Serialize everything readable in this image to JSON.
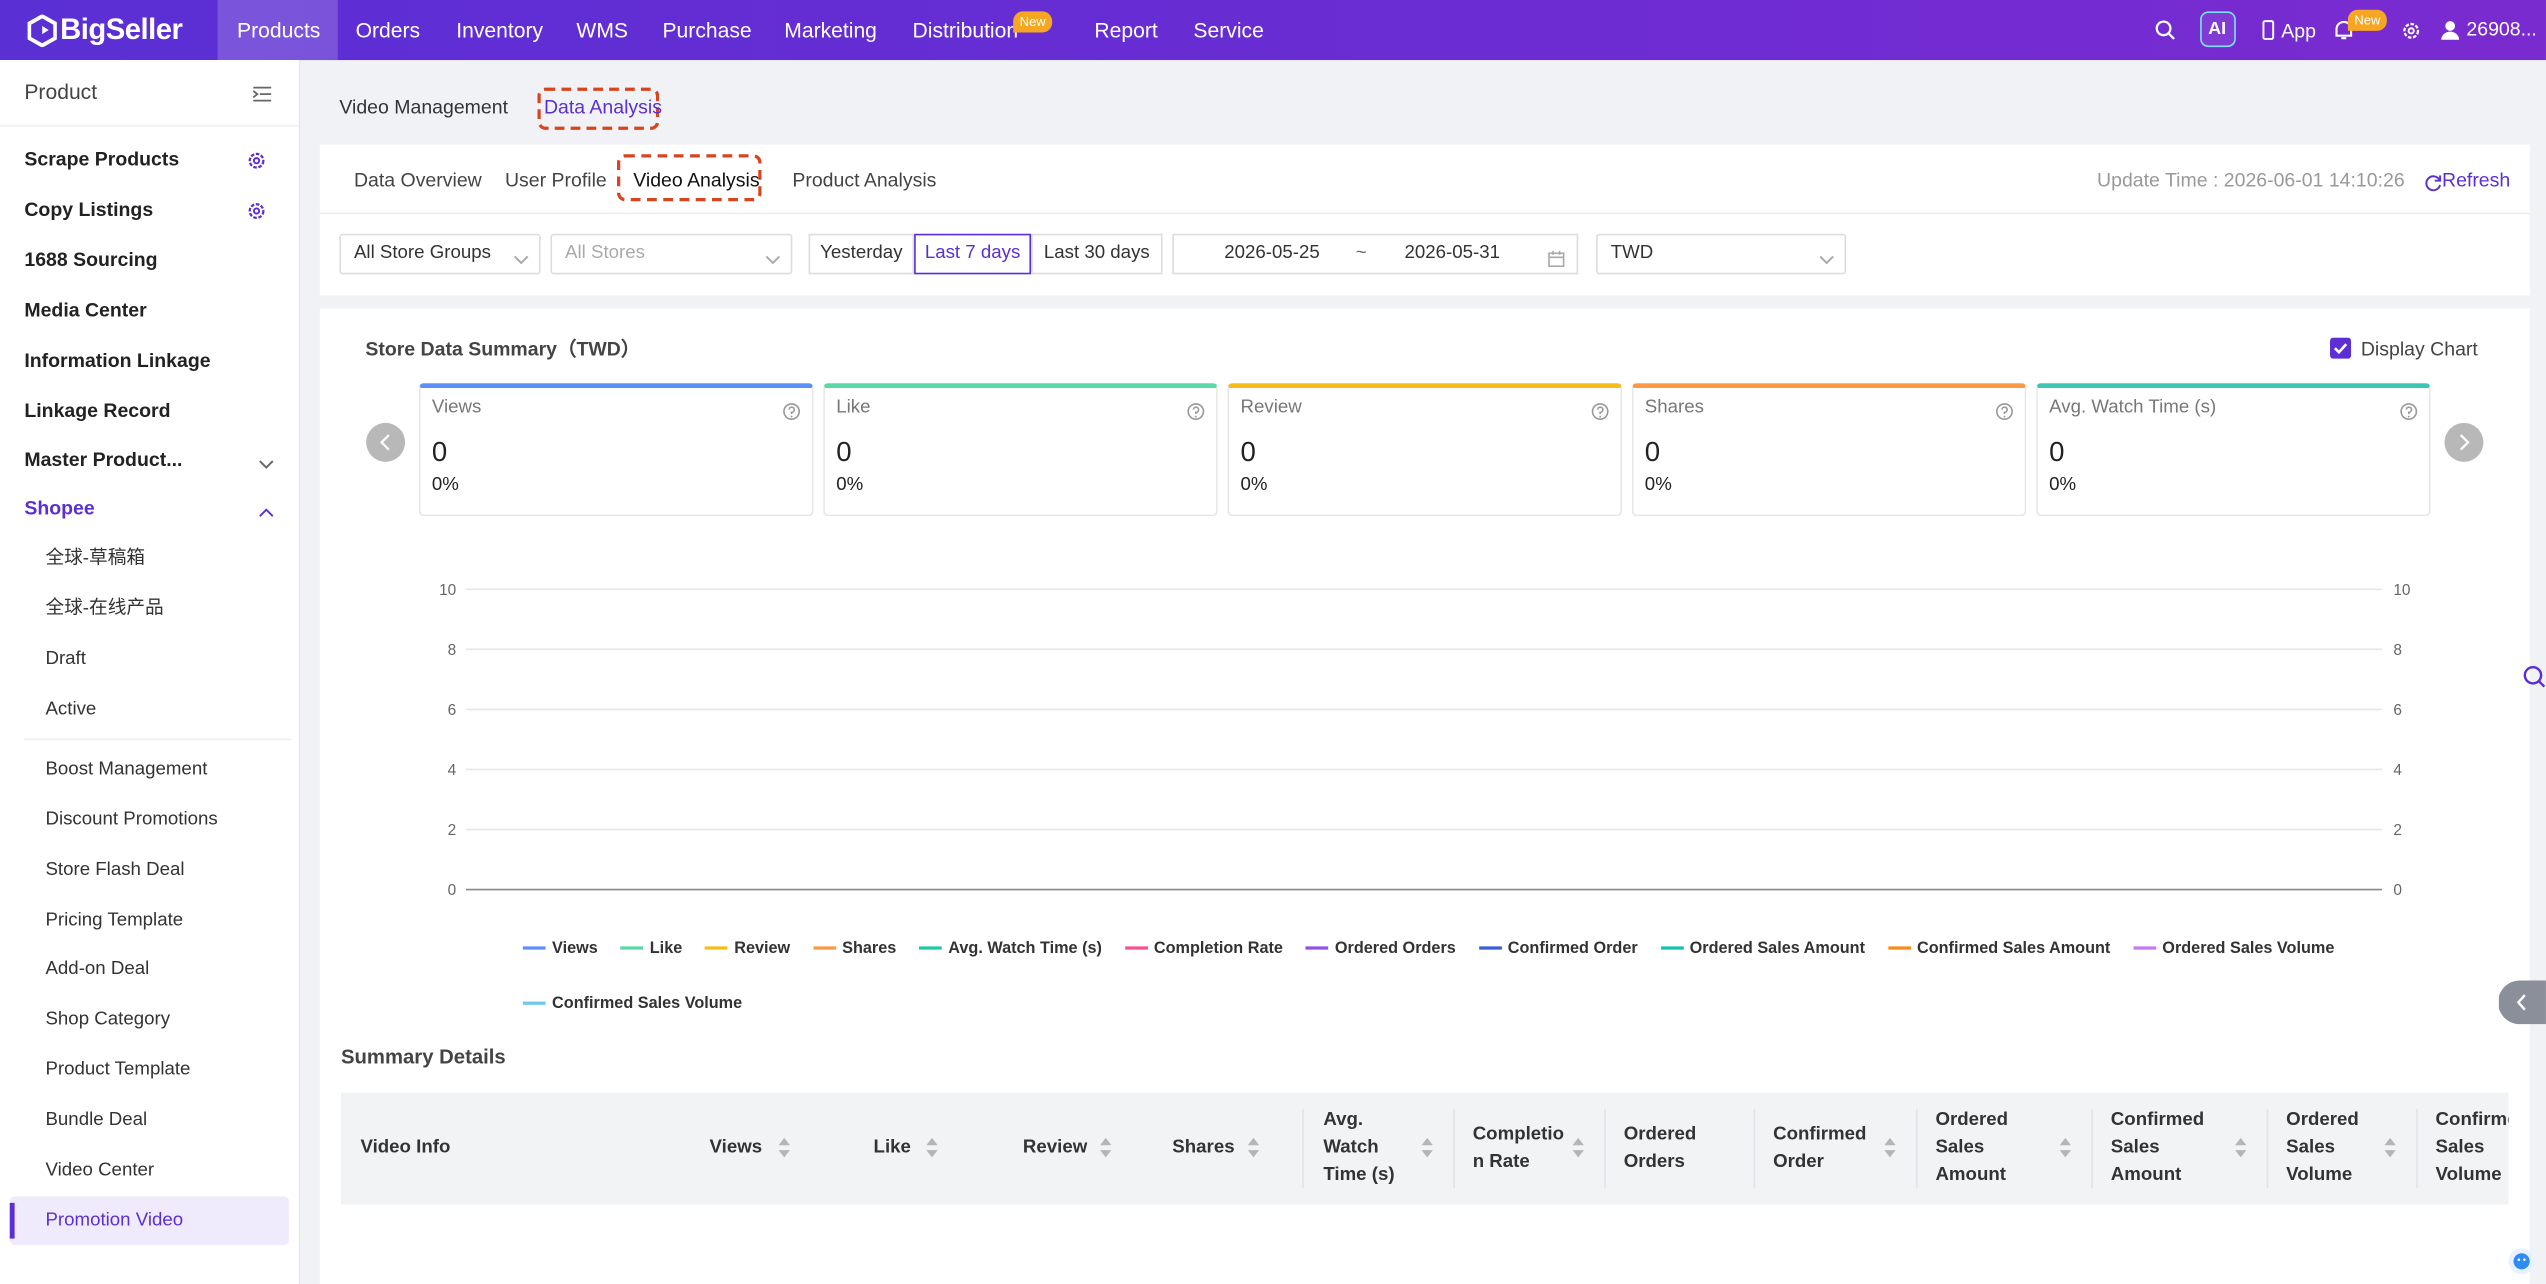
{
  "nav": {
    "logo": "BigSeller",
    "items": [
      "Products",
      "Orders",
      "Inventory",
      "WMS",
      "Purchase",
      "Marketing",
      "Distribution",
      "Report",
      "Service"
    ],
    "distribution_badge": "New",
    "ai": "AI",
    "app": "App",
    "notification_badge": "New",
    "user": "26908..."
  },
  "sidebar": {
    "title": "Product",
    "items": [
      "Scrape Products",
      "Copy Listings",
      "1688 Sourcing",
      "Media Center",
      "Information Linkage",
      "Linkage Record",
      "Master Product..."
    ],
    "section": "Shopee",
    "section_items": [
      "全球-草稿箱",
      "全球-在线产品",
      "Draft",
      "Active"
    ],
    "marketing_items": [
      "Boost Management",
      "Discount Promotions",
      "Store Flash Deal",
      "Pricing Template",
      "Add-on Deal",
      "Shop Category",
      "Product Template",
      "Bundle Deal",
      "Video Center",
      "Promotion Video"
    ]
  },
  "page_tabs": [
    "Video Management",
    "Data Analysis"
  ],
  "analysis_tabs": [
    "Data Overview",
    "User Profile",
    "Video Analysis",
    "Product Analysis"
  ],
  "update_time": "Update Time : 2026-06-01 14:10:26",
  "refresh": "Refresh",
  "filters": {
    "store_group": "All Store Groups",
    "store": "All Stores",
    "periods": [
      "Yesterday",
      "Last 7 days",
      "Last 30 days"
    ],
    "start_date": "2026-05-25",
    "separator": "~",
    "end_date": "2026-05-31",
    "currency": "TWD"
  },
  "summary": {
    "title": "Store Data Summary（TWD）",
    "display_chart": "Display Chart",
    "cards": [
      {
        "label": "Views",
        "value": "0",
        "change": "0%",
        "color": "#5b8ff9"
      },
      {
        "label": "Like",
        "value": "0",
        "change": "0%",
        "color": "#5ad8a6"
      },
      {
        "label": "Review",
        "value": "0",
        "change": "0%",
        "color": "#f6bd16"
      },
      {
        "label": "Shares",
        "value": "0",
        "change": "0%",
        "color": "#ff9845"
      },
      {
        "label": "Avg. Watch Time (s)",
        "value": "0",
        "change": "0%",
        "color": "#3cc7b4"
      }
    ]
  },
  "chart_data": {
    "type": "line",
    "ylim": [
      0,
      10
    ],
    "yticks": [
      0,
      2,
      4,
      6,
      8,
      10
    ],
    "y2lim": [
      0,
      10
    ],
    "y2ticks": [
      0,
      2,
      4,
      6,
      8,
      10
    ],
    "grid": true,
    "series": [
      {
        "name": "Views",
        "color": "#5b8ff9"
      },
      {
        "name": "Like",
        "color": "#5ad8a6"
      },
      {
        "name": "Review",
        "color": "#f6bd16"
      },
      {
        "name": "Shares",
        "color": "#ff9845"
      },
      {
        "name": "Avg. Watch Time (s)",
        "color": "#1ec8a5"
      },
      {
        "name": "Completion Rate",
        "color": "#ff4d94"
      },
      {
        "name": "Ordered Orders",
        "color": "#9254de"
      },
      {
        "name": "Confirmed Order",
        "color": "#3b5bdb"
      },
      {
        "name": "Ordered Sales Amount",
        "color": "#13c2b0"
      },
      {
        "name": "Confirmed Sales Amount",
        "color": "#fa8c16"
      },
      {
        "name": "Ordered Sales Volume",
        "color": "#c57af5"
      },
      {
        "name": "Confirmed Sales Volume",
        "color": "#6dc8ec"
      }
    ]
  },
  "details": {
    "title": "Summary Details",
    "columns": [
      "Video Info",
      "Views",
      "Like",
      "Review",
      "Shares",
      "Avg. Watch Time (s)",
      "Completion Rate",
      "Ordered Orders",
      "Confirmed Order",
      "Ordered Sales Amount",
      "Confirmed Sales Amount",
      "Ordered Sales Volume",
      "Confirmed Sales Volume"
    ]
  }
}
